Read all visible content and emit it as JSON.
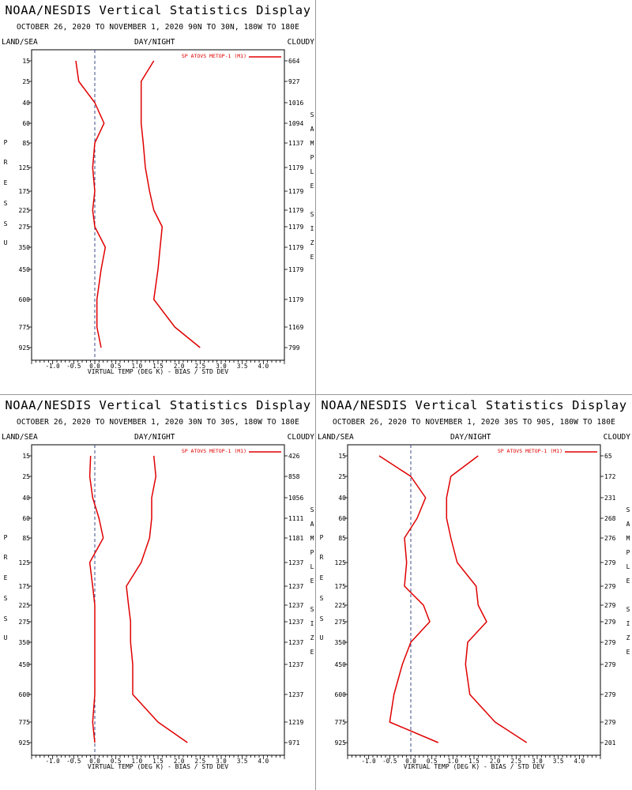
{
  "panels": [
    {
      "title": "NOAA/NESDIS Vertical Statistics Display",
      "subtitle": "OCTOBER 26, 2020 TO NOVEMBER 1, 2020 90N TO 30N, 180W TO 180E",
      "left_header": "LAND/SEA",
      "center_header": "DAY/NIGHT",
      "right_header": "CLOUDY"
    },
    {
      "title": "NOAA/NESDIS Vertical Statistics Display",
      "subtitle": "OCTOBER 26, 2020 TO NOVEMBER 1, 2020 30N TO 30S, 180W TO 180E",
      "left_header": "LAND/SEA",
      "center_header": "DAY/NIGHT",
      "right_header": "CLOUDY"
    },
    {
      "title": "NOAA/NESDIS Vertical Statistics Display",
      "subtitle": "OCTOBER 26, 2020 TO NOVEMBER 1, 2020 30S TO 90S, 180W TO 180E",
      "left_header": "LAND/SEA",
      "center_header": "DAY/NIGHT",
      "right_header": "CLOUDY"
    }
  ],
  "chart_data": [
    {
      "type": "line",
      "xlabel": "VIRTUAL TEMP (DEG K) - BIAS / STD DEV",
      "ylabel": "PRESSURE",
      "y2label": "SAMPLE SIZE",
      "xlim": [
        -1.5,
        4.5
      ],
      "xticks": [
        "-1.0",
        "-0.5",
        "0.0",
        "0.5",
        "1.0",
        "1.5",
        "2.0",
        "2.5",
        "3.0",
        "3.5",
        "4.0"
      ],
      "y_levels": [
        15,
        25,
        40,
        60,
        85,
        125,
        175,
        225,
        275,
        350,
        450,
        600,
        775,
        925
      ],
      "sample_size": [
        "664",
        "927",
        "1016",
        "1094",
        "1137",
        "1179",
        "1179",
        "1179",
        "1179",
        "1179",
        "1179",
        "1179",
        "1169",
        "799"
      ],
      "legend": "SP ATOVS METOP-1 (M1)",
      "color": "#e00000",
      "series": [
        {
          "name": "bias",
          "values": [
            -0.45,
            -0.38,
            0.0,
            0.22,
            0.0,
            -0.05,
            0.0,
            -0.05,
            0.0,
            0.25,
            0.15,
            0.05,
            0.05,
            0.15
          ]
        },
        {
          "name": "std_dev",
          "values": [
            1.4,
            1.1,
            1.1,
            1.1,
            1.15,
            1.2,
            1.3,
            1.4,
            1.6,
            1.55,
            1.5,
            1.4,
            1.9,
            2.5
          ]
        }
      ]
    },
    {
      "type": "line",
      "xlabel": "VIRTUAL TEMP (DEG K) - BIAS / STD DEV",
      "ylabel": "PRESSURE",
      "y2label": "SAMPLE SIZE",
      "xlim": [
        -1.5,
        4.5
      ],
      "xticks": [
        "-1.0",
        "-0.5",
        "0.0",
        "0.5",
        "1.0",
        "1.5",
        "2.0",
        "2.5",
        "3.0",
        "3.5",
        "4.0"
      ],
      "y_levels": [
        15,
        25,
        40,
        60,
        85,
        125,
        175,
        225,
        275,
        350,
        450,
        600,
        775,
        925
      ],
      "sample_size": [
        "426",
        "858",
        "1056",
        "1111",
        "1181",
        "1237",
        "1237",
        "1237",
        "1237",
        "1237",
        "1237",
        "1237",
        "1219",
        "971"
      ],
      "legend": "SP ATOVS METOP-1 (M1)",
      "color": "#e00000",
      "series": [
        {
          "name": "bias",
          "values": [
            -0.1,
            -0.12,
            -0.05,
            0.1,
            0.2,
            -0.12,
            -0.05,
            0.0,
            0.0,
            0.0,
            0.0,
            0.0,
            -0.05,
            0.0
          ]
        },
        {
          "name": "std_dev",
          "values": [
            1.4,
            1.45,
            1.35,
            1.35,
            1.3,
            1.1,
            0.75,
            0.8,
            0.85,
            0.85,
            0.9,
            0.9,
            1.5,
            2.2
          ]
        }
      ]
    },
    {
      "type": "line",
      "xlabel": "VIRTUAL TEMP (DEG K) - BIAS / STD DEV",
      "ylabel": "PRESSURE",
      "y2label": "SAMPLE SIZE",
      "xlim": [
        -1.5,
        4.5
      ],
      "xticks": [
        "-1.0",
        "-0.5",
        "0.0",
        "0.5",
        "1.0",
        "1.5",
        "2.0",
        "2.5",
        "3.0",
        "3.5",
        "4.0"
      ],
      "y_levels": [
        15,
        25,
        40,
        60,
        85,
        125,
        175,
        225,
        275,
        350,
        450,
        600,
        775,
        925
      ],
      "sample_size": [
        "65",
        "172",
        "231",
        "268",
        "276",
        "279",
        "279",
        "279",
        "279",
        "279",
        "279",
        "279",
        "279",
        "201"
      ],
      "legend": "SP ATOVS METOP-1 (M1)",
      "color": "#e00000",
      "series": [
        {
          "name": "bias",
          "values": [
            -0.75,
            0.0,
            0.35,
            0.15,
            -0.15,
            -0.1,
            -0.15,
            0.3,
            0.45,
            0.0,
            -0.2,
            -0.4,
            -0.5,
            0.65
          ]
        },
        {
          "name": "std_dev",
          "values": [
            1.6,
            0.95,
            0.85,
            0.85,
            0.95,
            1.1,
            1.55,
            1.6,
            1.8,
            1.35,
            1.3,
            1.4,
            2.0,
            2.75
          ]
        }
      ]
    }
  ]
}
